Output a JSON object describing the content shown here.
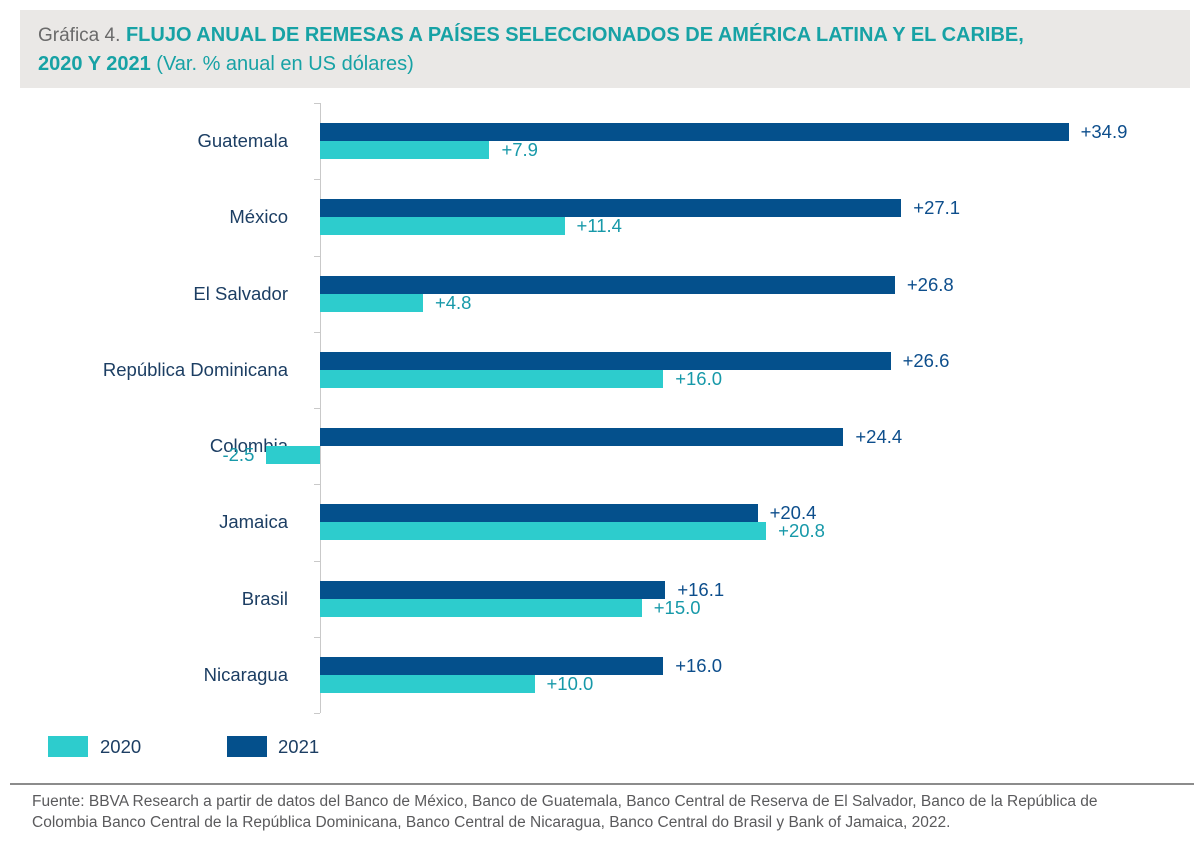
{
  "header": {
    "figure_label": "Gráfica 4.",
    "title_line1": "FLUJO ANUAL DE REMESAS A PAÍSES SELECCIONADOS DE AMÉRICA LATINA Y EL CARIBE,",
    "title_line2": "2020 Y 2021",
    "subtitle": "(Var. % anual en US dólares)"
  },
  "chart_data": {
    "type": "bar",
    "orientation": "horizontal",
    "title": "FLUJO ANUAL DE REMESAS A PAÍSES SELECCIONADOS DE AMÉRICA LATINA Y EL CARIBE, 2020 Y 2021 (Var. % anual en US dólares)",
    "categories": [
      "Guatemala",
      "México",
      "El Salvador",
      "República Dominicana",
      "Colombia",
      "Jamaica",
      "Brasil",
      "Nicaragua"
    ],
    "series": [
      {
        "name": "2021",
        "color": "#04508C",
        "label_color": "#0D4E8C",
        "values": [
          34.9,
          27.1,
          26.8,
          26.6,
          24.4,
          20.4,
          16.1,
          16.0
        ],
        "labels": [
          "+34.9",
          "+27.1",
          "+26.8",
          "+26.6",
          "+24.4",
          "+20.4",
          "+16.1",
          "+16.0"
        ]
      },
      {
        "name": "2020",
        "color": "#2DCCCD",
        "label_color": "#1799A9",
        "values": [
          7.9,
          11.4,
          4.8,
          16.0,
          -2.5,
          20.8,
          15.0,
          10.0
        ],
        "labels": [
          "+7.9",
          "+11.4",
          "+4.8",
          "+16.0",
          "-2.5",
          "+20.8",
          "+15.0",
          "+10.0"
        ]
      }
    ],
    "bar_group_order": "2021 bar drawn above 2020 bar in each category group",
    "xlim": [
      -5,
      40
    ],
    "grid": false,
    "legend_position": "bottom-left",
    "legend": [
      {
        "label": "2020",
        "color": "#2DCCCD"
      },
      {
        "label": "2021",
        "color": "#04508C"
      }
    ]
  },
  "footer": {
    "source": "Fuente: BBVA Research a partir de datos del Banco de México, Banco de Guatemala, Banco Central de Reserva de El Salvador, Banco de la República de Colombia Banco Central de la República Dominicana, Banco Central de Nicaragua, Banco Central do Brasil y Bank of Jamaica, 2022."
  },
  "colors": {
    "header_background": "#EAE8E6",
    "title_teal": "#17A2A5",
    "figure_label_gray": "#6A6A6A",
    "bar_navy": "#04508C",
    "bar_teal": "#2DCCCD",
    "category_text": "#1C3E63",
    "axis_gray": "#C9C9C9",
    "source_text": "#5A5A5C"
  }
}
